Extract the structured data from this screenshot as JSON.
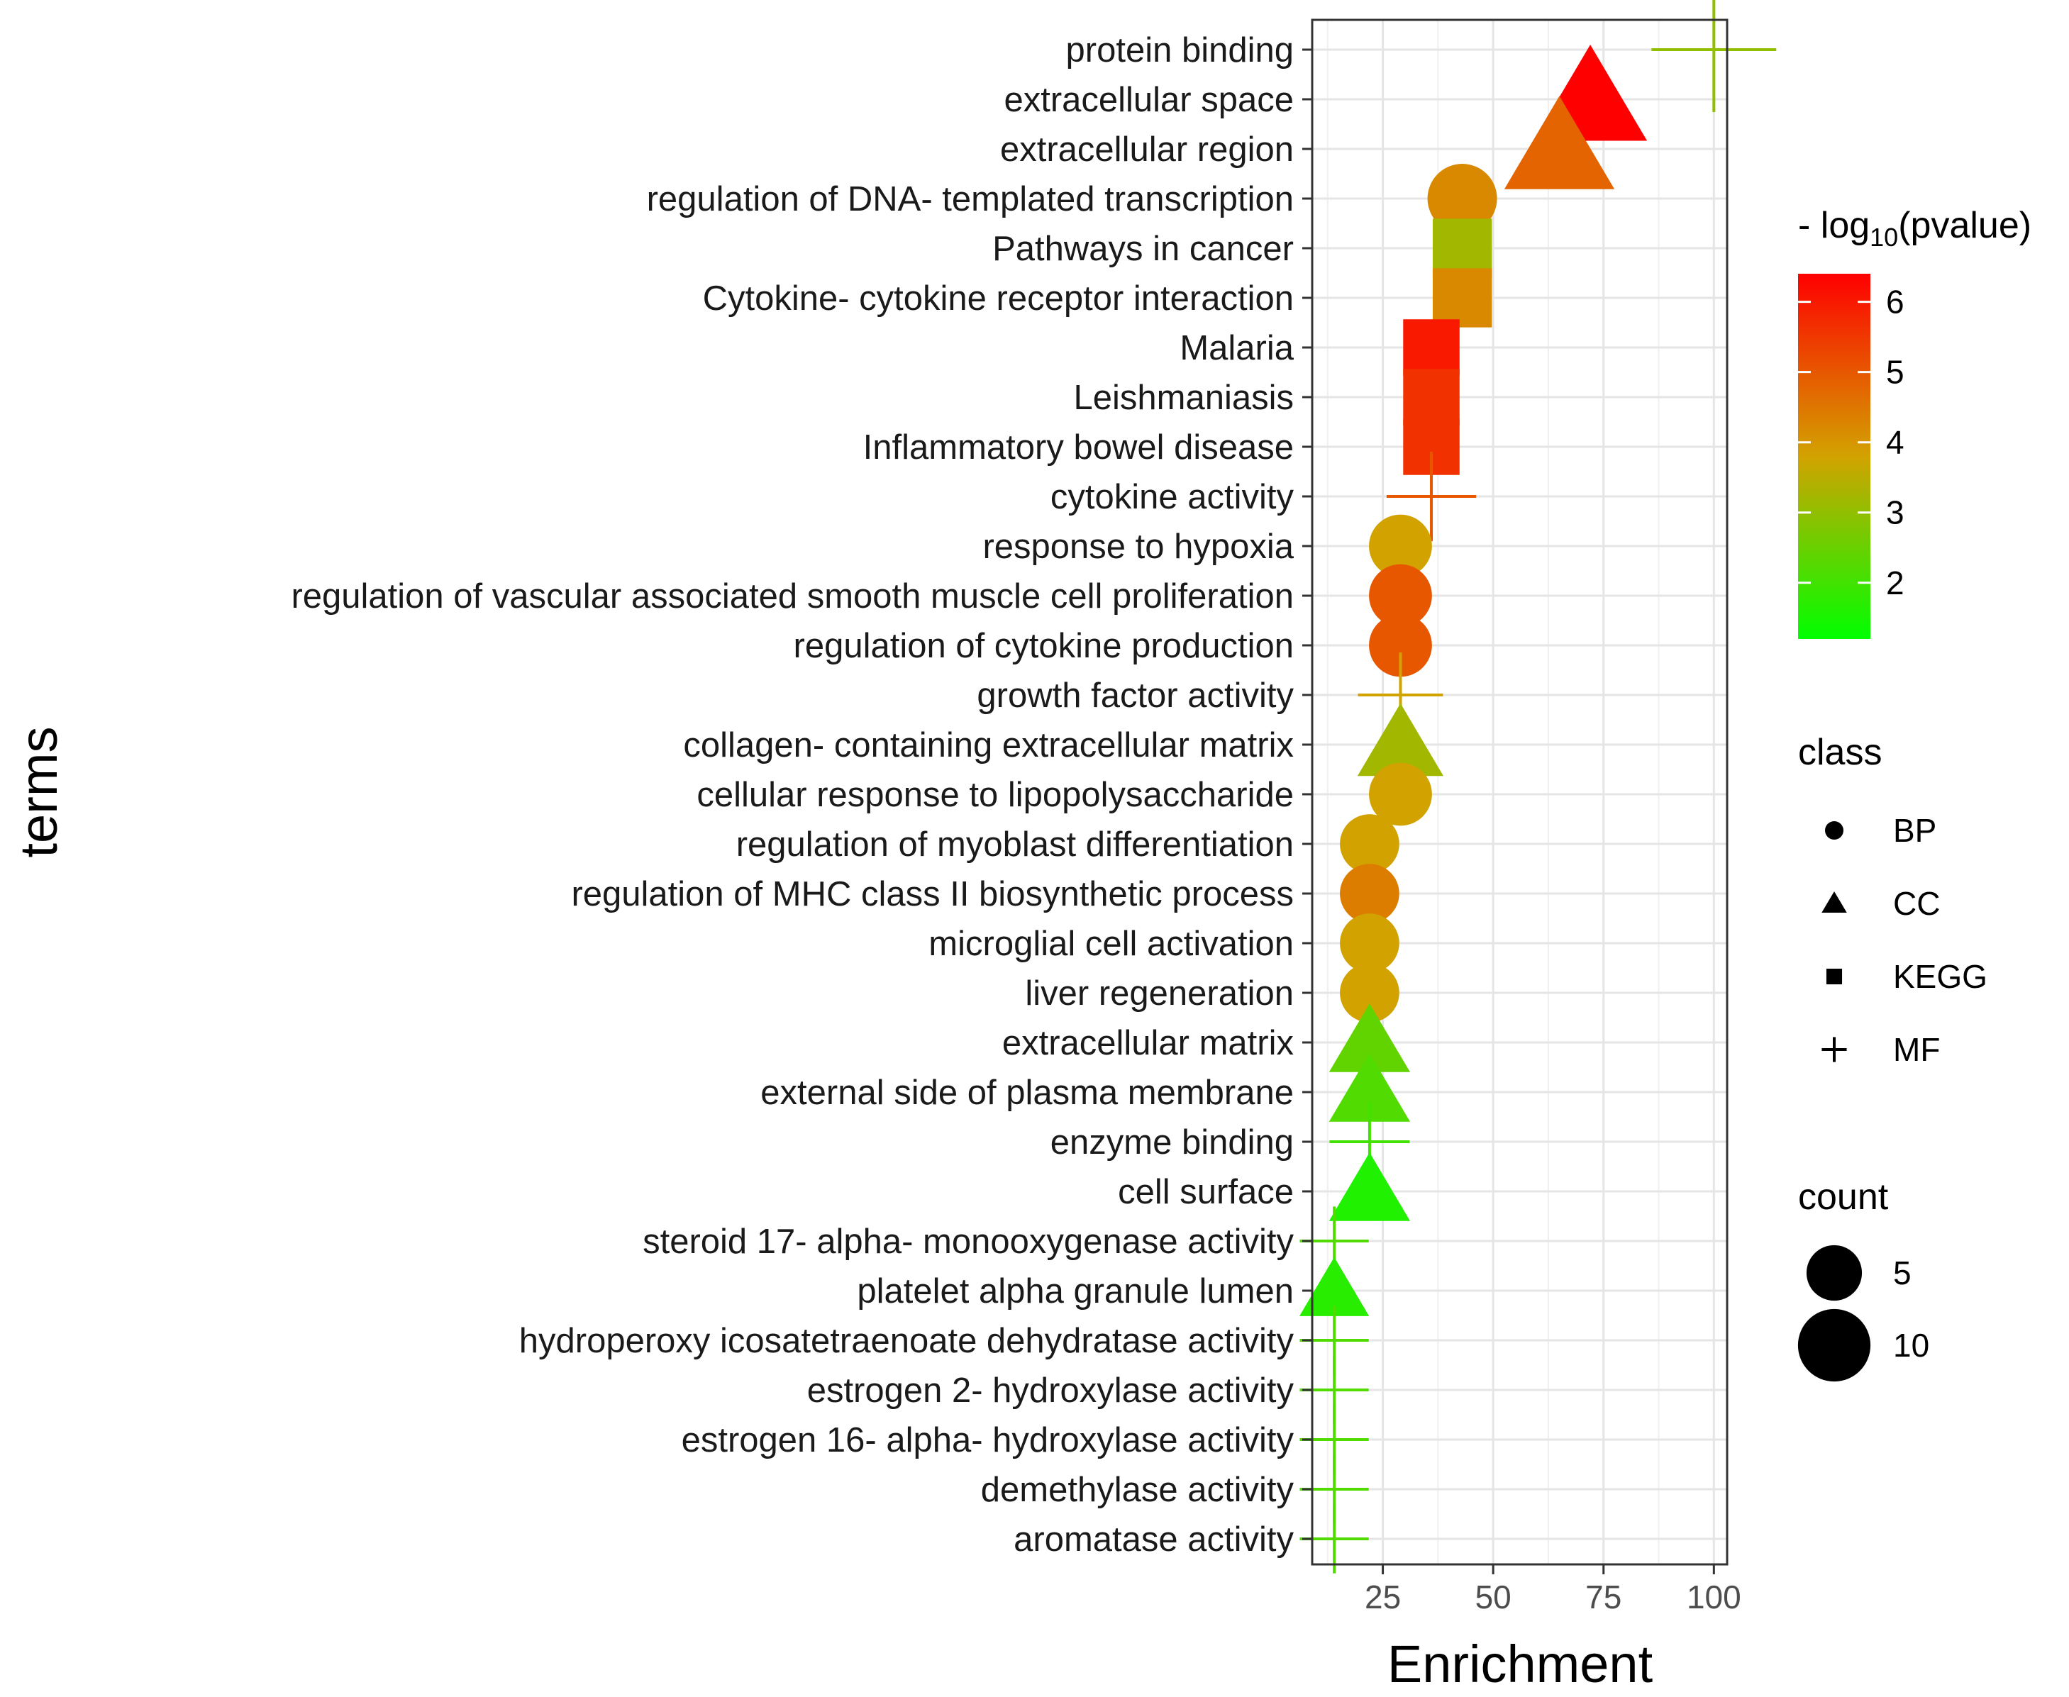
{
  "chart_data": {
    "type": "scatter",
    "xlabel": "Enrichment",
    "ylabel": "terms",
    "xlim": [
      9,
      103
    ],
    "x_ticks": [
      "25",
      "50",
      "75",
      "100"
    ],
    "x_tick_values": [
      25,
      50,
      75,
      100
    ],
    "grid": true,
    "color_scale": {
      "title": "- log",
      "title_sub": "10",
      "title_rest": "(pvalue)",
      "min": 1.2,
      "max": 6.4,
      "ticks": [
        "2",
        "3",
        "4",
        "5",
        "6"
      ],
      "tick_values": [
        2,
        3,
        4,
        5,
        6
      ],
      "low_color": "#00ff00",
      "high_color": "#ff0000"
    },
    "shape_legend": {
      "title": "class",
      "items": [
        {
          "label": "BP",
          "shape": "circle"
        },
        {
          "label": "CC",
          "shape": "triangle"
        },
        {
          "label": "KEGG",
          "shape": "square"
        },
        {
          "label": "MF",
          "shape": "plus"
        }
      ]
    },
    "size_legend": {
      "title": "count",
      "items": [
        {
          "label": "5",
          "value": 5
        },
        {
          "label": "10",
          "value": 10
        }
      ]
    },
    "points": [
      {
        "term": "protein binding",
        "enrichment": 100,
        "class": "MF",
        "neglog10p": 3.0,
        "count": 18
      },
      {
        "term": "extracellular space",
        "enrichment": 72,
        "class": "CC",
        "neglog10p": 6.4,
        "count": 14
      },
      {
        "term": "extracellular region",
        "enrichment": 65,
        "class": "CC",
        "neglog10p": 4.8,
        "count": 13
      },
      {
        "term": "regulation of DNA- templated transcription",
        "enrichment": 43,
        "class": "BP",
        "neglog10p": 4.2,
        "count": 9
      },
      {
        "term": "Pathways in cancer",
        "enrichment": 43,
        "class": "KEGG",
        "neglog10p": 3.2,
        "count": 9
      },
      {
        "term": "Cytokine- cytokine receptor interaction",
        "enrichment": 43,
        "class": "KEGG",
        "neglog10p": 4.2,
        "count": 9
      },
      {
        "term": "Malaria",
        "enrichment": 36,
        "class": "KEGG",
        "neglog10p": 6.0,
        "count": 8
      },
      {
        "term": "Leishmaniasis",
        "enrichment": 36,
        "class": "KEGG",
        "neglog10p": 5.6,
        "count": 8
      },
      {
        "term": "Inflammatory bowel disease",
        "enrichment": 36,
        "class": "KEGG",
        "neglog10p": 5.6,
        "count": 8
      },
      {
        "term": "cytokine activity",
        "enrichment": 36,
        "class": "MF",
        "neglog10p": 5.0,
        "count": 8
      },
      {
        "term": "response to hypoxia",
        "enrichment": 29,
        "class": "BP",
        "neglog10p": 3.8,
        "count": 7
      },
      {
        "term": "regulation of vascular associated smooth muscle cell proliferation",
        "enrichment": 29,
        "class": "BP",
        "neglog10p": 5.0,
        "count": 7
      },
      {
        "term": "regulation of cytokine production",
        "enrichment": 29,
        "class": "BP",
        "neglog10p": 5.0,
        "count": 7
      },
      {
        "term": "growth factor activity",
        "enrichment": 29,
        "class": "MF",
        "neglog10p": 3.8,
        "count": 7
      },
      {
        "term": "collagen- containing extracellular matrix",
        "enrichment": 29,
        "class": "CC",
        "neglog10p": 3.2,
        "count": 7
      },
      {
        "term": "cellular response to lipopolysaccharide",
        "enrichment": 29,
        "class": "BP",
        "neglog10p": 3.8,
        "count": 7
      },
      {
        "term": "regulation of myoblast differentiation",
        "enrichment": 22,
        "class": "BP",
        "neglog10p": 3.8,
        "count": 6
      },
      {
        "term": "regulation of MHC class II biosynthetic process",
        "enrichment": 22,
        "class": "BP",
        "neglog10p": 4.4,
        "count": 6
      },
      {
        "term": "microglial cell activation",
        "enrichment": 22,
        "class": "BP",
        "neglog10p": 3.8,
        "count": 6
      },
      {
        "term": "liver regeneration",
        "enrichment": 22,
        "class": "BP",
        "neglog10p": 3.8,
        "count": 6
      },
      {
        "term": "extracellular matrix",
        "enrichment": 22,
        "class": "CC",
        "neglog10p": 2.4,
        "count": 6
      },
      {
        "term": "external side of plasma membrane",
        "enrichment": 22,
        "class": "CC",
        "neglog10p": 2.2,
        "count": 6
      },
      {
        "term": "enzyme binding",
        "enrichment": 22,
        "class": "MF",
        "neglog10p": 2.0,
        "count": 6
      },
      {
        "term": "cell surface",
        "enrichment": 22,
        "class": "CC",
        "neglog10p": 1.6,
        "count": 6
      },
      {
        "term": "steroid 17- alpha- monooxygenase activity",
        "enrichment": 14,
        "class": "MF",
        "neglog10p": 2.2,
        "count": 4
      },
      {
        "term": "platelet alpha granule lumen",
        "enrichment": 14,
        "class": "CC",
        "neglog10p": 1.7,
        "count": 4
      },
      {
        "term": "hydroperoxy icosatetraenoate dehydratase activity",
        "enrichment": 14,
        "class": "MF",
        "neglog10p": 2.2,
        "count": 4
      },
      {
        "term": "estrogen 2- hydroxylase activity",
        "enrichment": 14,
        "class": "MF",
        "neglog10p": 2.2,
        "count": 4
      },
      {
        "term": "estrogen 16- alpha- hydroxylase activity",
        "enrichment": 14,
        "class": "MF",
        "neglog10p": 2.2,
        "count": 4
      },
      {
        "term": "demethylase activity",
        "enrichment": 14,
        "class": "MF",
        "neglog10p": 2.2,
        "count": 4
      },
      {
        "term": "aromatase activity",
        "enrichment": 14,
        "class": "MF",
        "neglog10p": 2.2,
        "count": 4
      }
    ]
  }
}
